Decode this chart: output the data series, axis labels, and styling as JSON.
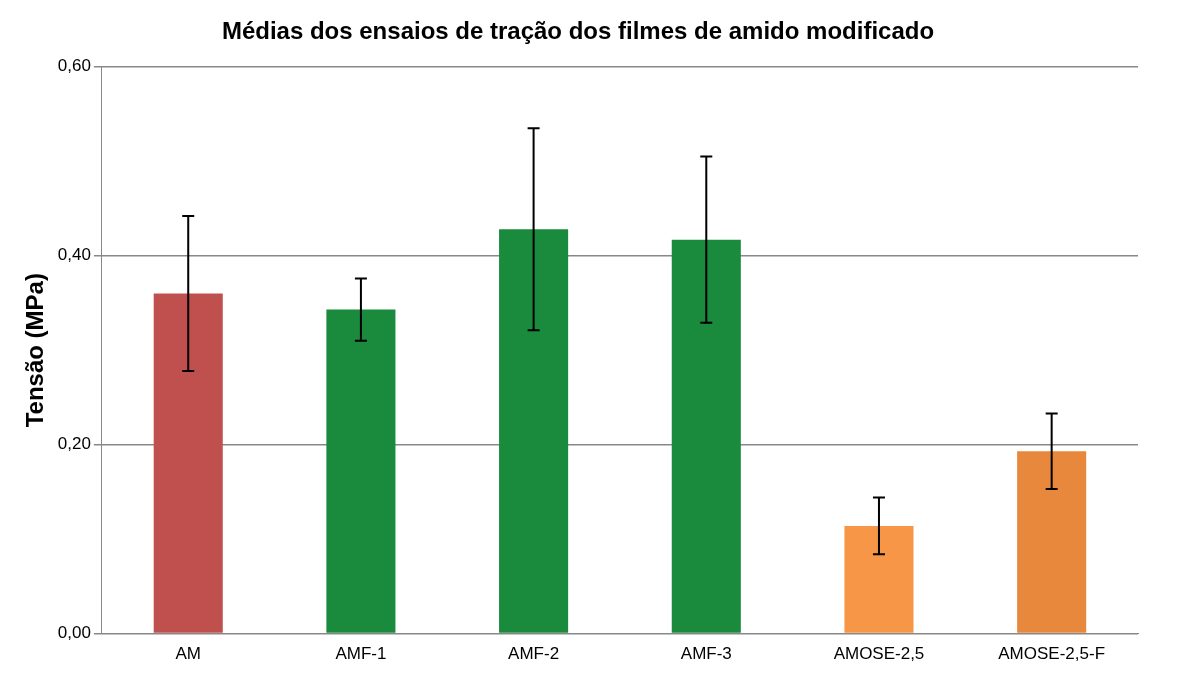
{
  "chart_data": {
    "type": "bar",
    "title": "Médias dos ensaios de tração dos filmes de amido modificado",
    "ylabel": "Tensão (MPa)",
    "categories": [
      "AM",
      "AMF-1",
      "AMF-2",
      "AMF-3",
      "AMOSE-2,5",
      "AMOSE-2,5-F"
    ],
    "values": [
      0.36,
      0.343,
      0.428,
      0.417,
      0.114,
      0.193
    ],
    "colors": [
      "#c0504d",
      "#1a8a3c",
      "#1a8a3c",
      "#1a8a3c",
      "#f79646",
      "#e8883c"
    ],
    "errors": [
      0.082,
      0.033,
      0.107,
      0.088,
      0.03,
      0.04
    ],
    "ylim": [
      0,
      0.6
    ],
    "yticks": [
      {
        "value": 0,
        "label": "0,00"
      },
      {
        "value": 0.2,
        "label": "0,20"
      },
      {
        "value": 0.4,
        "label": "0,40"
      },
      {
        "value": 0.6,
        "label": "0,60"
      }
    ],
    "grid": "y"
  }
}
